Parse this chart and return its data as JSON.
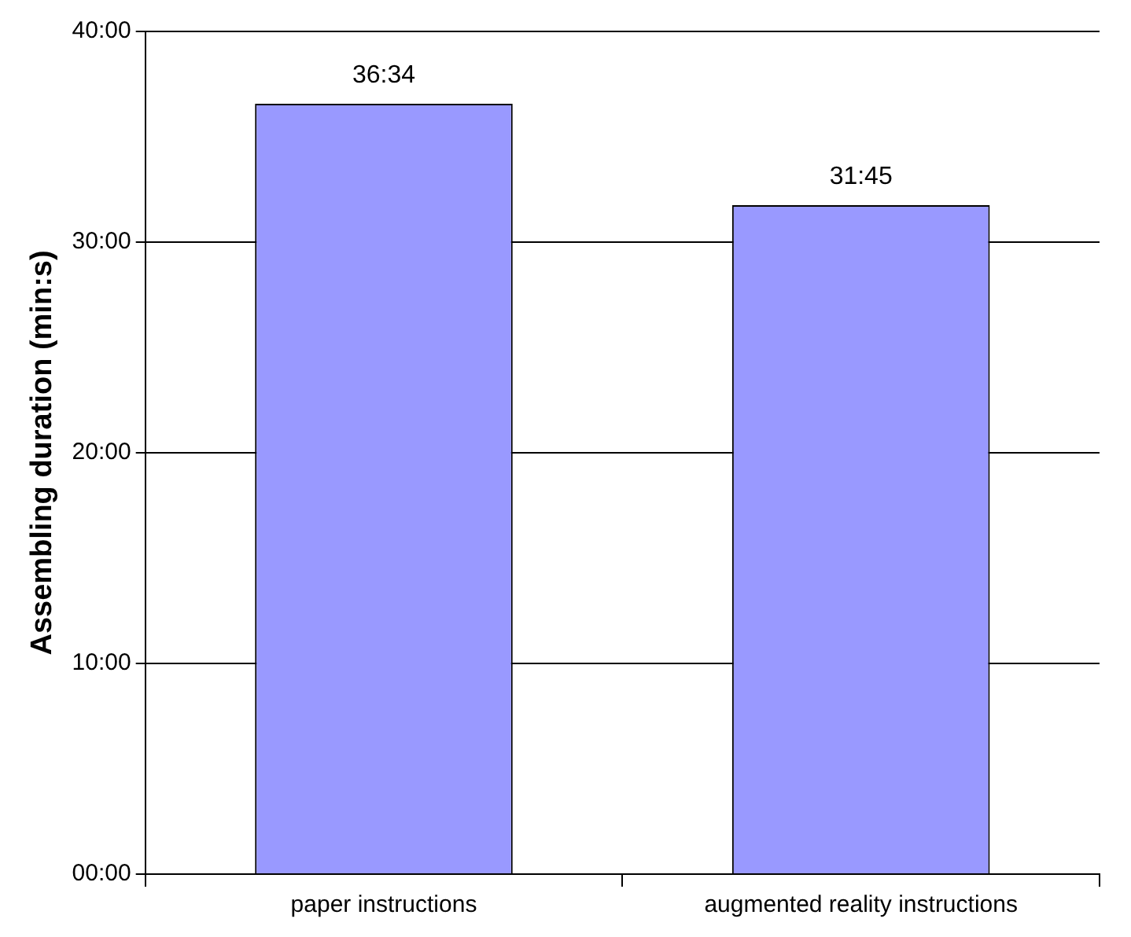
{
  "chart_data": {
    "type": "bar",
    "ylabel": "Assembling duration (min:s)",
    "categories": [
      "paper instructions",
      "augmented reality instructions"
    ],
    "values": [
      36.567,
      31.75
    ],
    "color": "#9999ff",
    "value_labels": [
      "36:34",
      "31:45"
    ],
    "ylim": [
      0,
      40
    ],
    "yticks": [
      {
        "value": 0,
        "label": "00:00"
      },
      {
        "value": 10,
        "label": "10:00"
      },
      {
        "value": 20,
        "label": "20:00"
      },
      {
        "value": 30,
        "label": "30:00"
      },
      {
        "value": 40,
        "label": "40:00"
      }
    ],
    "grid": "y",
    "legend": false
  }
}
